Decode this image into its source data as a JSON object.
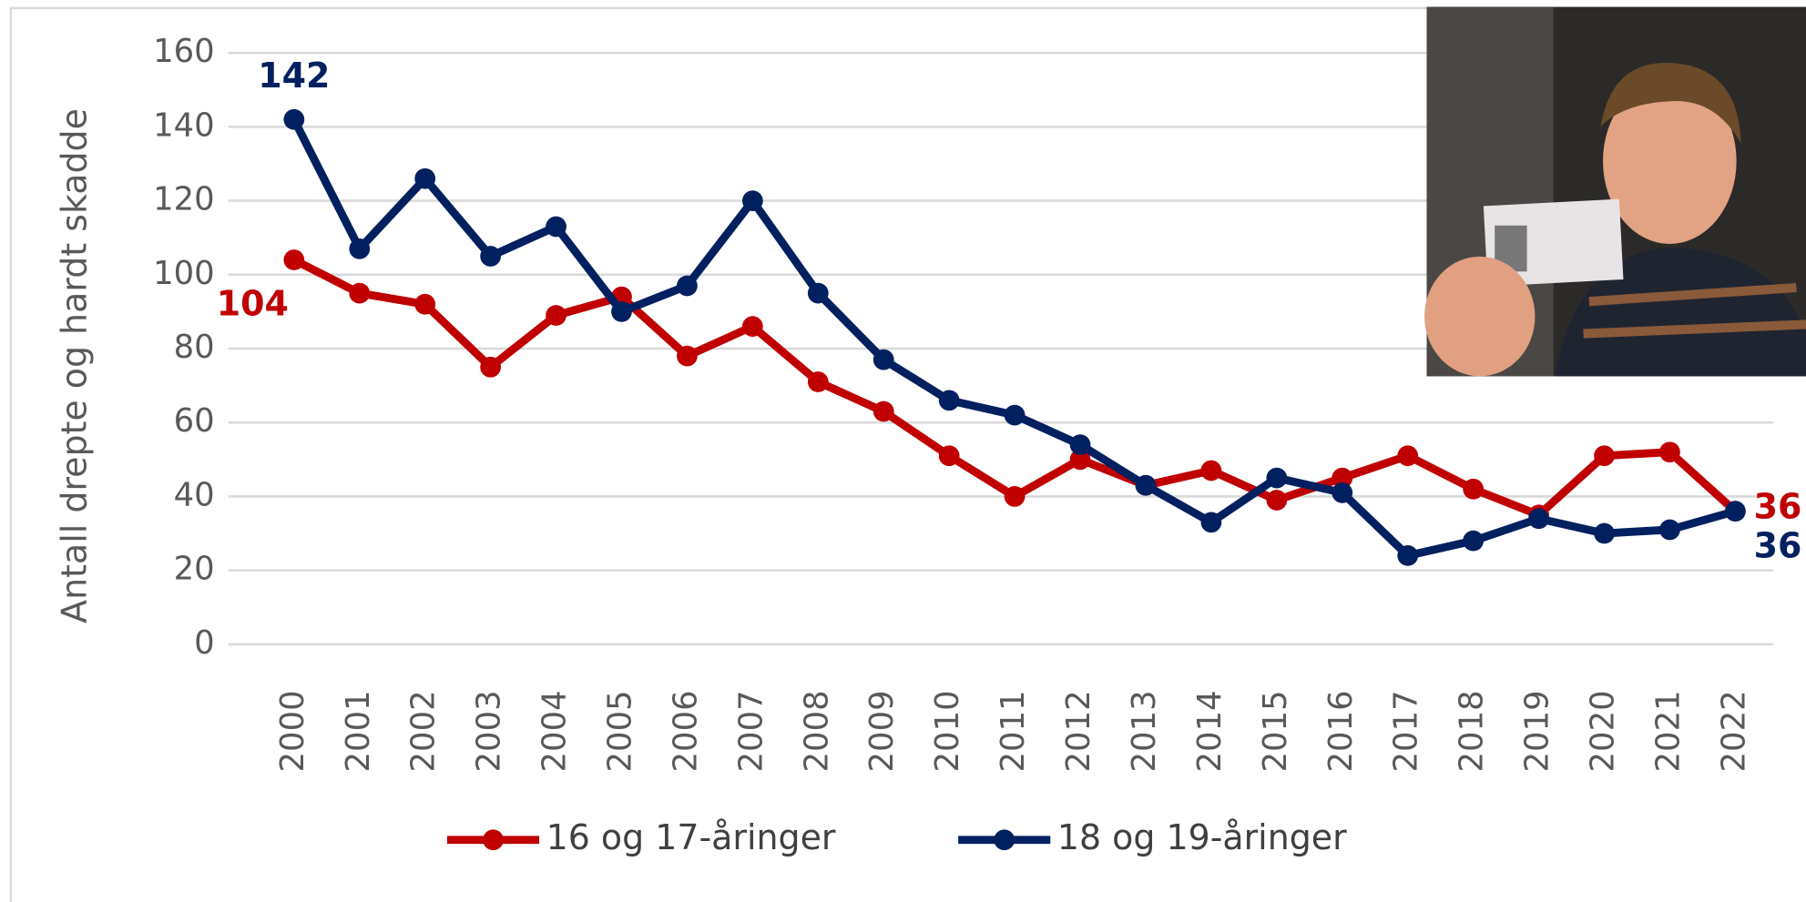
{
  "chart_data": {
    "type": "line",
    "y_label": "Antall drepte og hardt skadde",
    "categories": [
      "2000",
      "2001",
      "2002",
      "2003",
      "2004",
      "2005",
      "2006",
      "2007",
      "2008",
      "2009",
      "2010",
      "2011",
      "2012",
      "2013",
      "2014",
      "2015",
      "2016",
      "2017",
      "2018",
      "2019",
      "2020",
      "2021",
      "2022"
    ],
    "series": [
      {
        "name": "16 og 17-åringer",
        "color": "#c00000",
        "values": [
          104,
          95,
          92,
          75,
          89,
          94,
          78,
          86,
          71,
          63,
          51,
          40,
          50,
          43,
          47,
          39,
          45,
          51,
          42,
          35,
          51,
          52,
          36
        ]
      },
      {
        "name": "18 og 19-åringer",
        "color": "#002060",
        "values": [
          142,
          107,
          126,
          105,
          113,
          90,
          97,
          120,
          95,
          77,
          66,
          62,
          54,
          43,
          33,
          45,
          41,
          24,
          28,
          34,
          30,
          31,
          36
        ]
      }
    ],
    "ylim": [
      0,
      160
    ],
    "yticks": [
      0,
      20,
      40,
      60,
      80,
      100,
      120,
      140,
      160
    ],
    "grid": true,
    "legend": "bottom"
  }
}
